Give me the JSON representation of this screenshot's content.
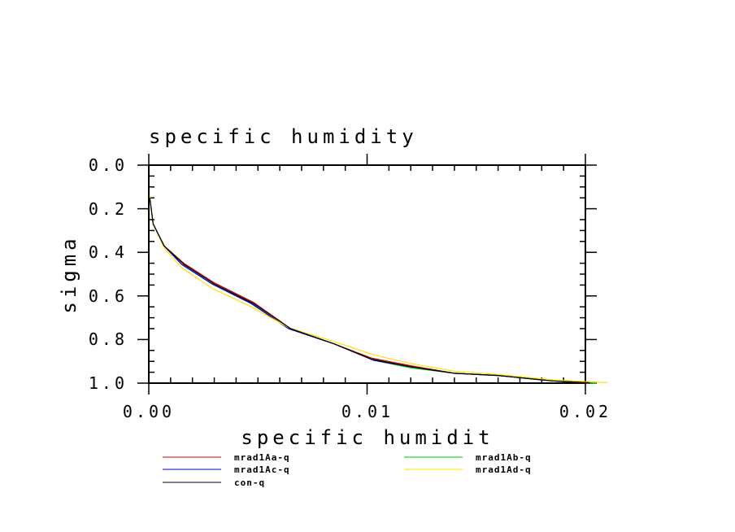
{
  "chart_data": {
    "type": "line",
    "title": "specific humidity",
    "xlabel": "specific humidit",
    "ylabel": "sigma",
    "xlim": [
      0.0,
      0.02
    ],
    "ylim": [
      0.0,
      1.0
    ],
    "y_inverted": true,
    "x_ticks": [
      "0.00",
      "0.01",
      "0.02"
    ],
    "y_ticks": [
      "0.0",
      "0.2",
      "0.4",
      "0.6",
      "0.8",
      "1.0"
    ],
    "legend_position": "bottom",
    "grid": false,
    "series": [
      {
        "name": "mrad1Aa-q",
        "color": "#cc0000",
        "points": [
          [
            5e-05,
            0.15
          ],
          [
            0.0002,
            0.27
          ],
          [
            0.0007,
            0.37
          ],
          [
            0.0016,
            0.45
          ],
          [
            0.003,
            0.54
          ],
          [
            0.0048,
            0.63
          ],
          [
            0.0065,
            0.75
          ],
          [
            0.0085,
            0.82
          ],
          [
            0.0102,
            0.885
          ],
          [
            0.012,
            0.92
          ],
          [
            0.014,
            0.955
          ],
          [
            0.016,
            0.965
          ],
          [
            0.0185,
            0.99
          ],
          [
            0.0201,
            1.0
          ]
        ]
      },
      {
        "name": "mrad1Ab-q",
        "color": "#00c000",
        "points": [
          [
            5e-05,
            0.15
          ],
          [
            0.0002,
            0.27
          ],
          [
            0.0007,
            0.37
          ],
          [
            0.0015,
            0.455
          ],
          [
            0.0029,
            0.545
          ],
          [
            0.0047,
            0.635
          ],
          [
            0.0064,
            0.75
          ],
          [
            0.0085,
            0.82
          ],
          [
            0.0103,
            0.895
          ],
          [
            0.012,
            0.93
          ],
          [
            0.014,
            0.955
          ],
          [
            0.016,
            0.965
          ],
          [
            0.0185,
            0.99
          ],
          [
            0.0205,
            1.0
          ]
        ]
      },
      {
        "name": "mrad1Ac-q",
        "color": "#0000cc",
        "points": [
          [
            5e-05,
            0.15
          ],
          [
            0.0002,
            0.27
          ],
          [
            0.0007,
            0.37
          ],
          [
            0.0015,
            0.455
          ],
          [
            0.0029,
            0.545
          ],
          [
            0.0047,
            0.635
          ],
          [
            0.0064,
            0.75
          ],
          [
            0.0085,
            0.82
          ],
          [
            0.0103,
            0.895
          ],
          [
            0.012,
            0.925
          ],
          [
            0.014,
            0.955
          ],
          [
            0.016,
            0.965
          ],
          [
            0.0185,
            0.99
          ],
          [
            0.0202,
            0.995
          ]
        ]
      },
      {
        "name": "mrad1Ad-q",
        "color": "#ffe000",
        "points": [
          [
            5e-05,
            0.14
          ],
          [
            0.0002,
            0.27
          ],
          [
            0.0007,
            0.38
          ],
          [
            0.0015,
            0.47
          ],
          [
            0.0029,
            0.565
          ],
          [
            0.0047,
            0.65
          ],
          [
            0.0064,
            0.745
          ],
          [
            0.0085,
            0.81
          ],
          [
            0.0103,
            0.87
          ],
          [
            0.012,
            0.91
          ],
          [
            0.014,
            0.945
          ],
          [
            0.016,
            0.96
          ],
          [
            0.0185,
            0.985
          ],
          [
            0.021,
            0.998
          ]
        ]
      },
      {
        "name": "con-q",
        "color": "#000000",
        "points": [
          [
            5e-05,
            0.15
          ],
          [
            0.0002,
            0.27
          ],
          [
            0.0007,
            0.37
          ],
          [
            0.0016,
            0.455
          ],
          [
            0.003,
            0.545
          ],
          [
            0.0048,
            0.635
          ],
          [
            0.0065,
            0.75
          ],
          [
            0.0085,
            0.82
          ],
          [
            0.0102,
            0.89
          ],
          [
            0.012,
            0.925
          ],
          [
            0.014,
            0.955
          ],
          [
            0.016,
            0.965
          ],
          [
            0.0185,
            0.99
          ],
          [
            0.0202,
            0.998
          ]
        ]
      }
    ]
  }
}
